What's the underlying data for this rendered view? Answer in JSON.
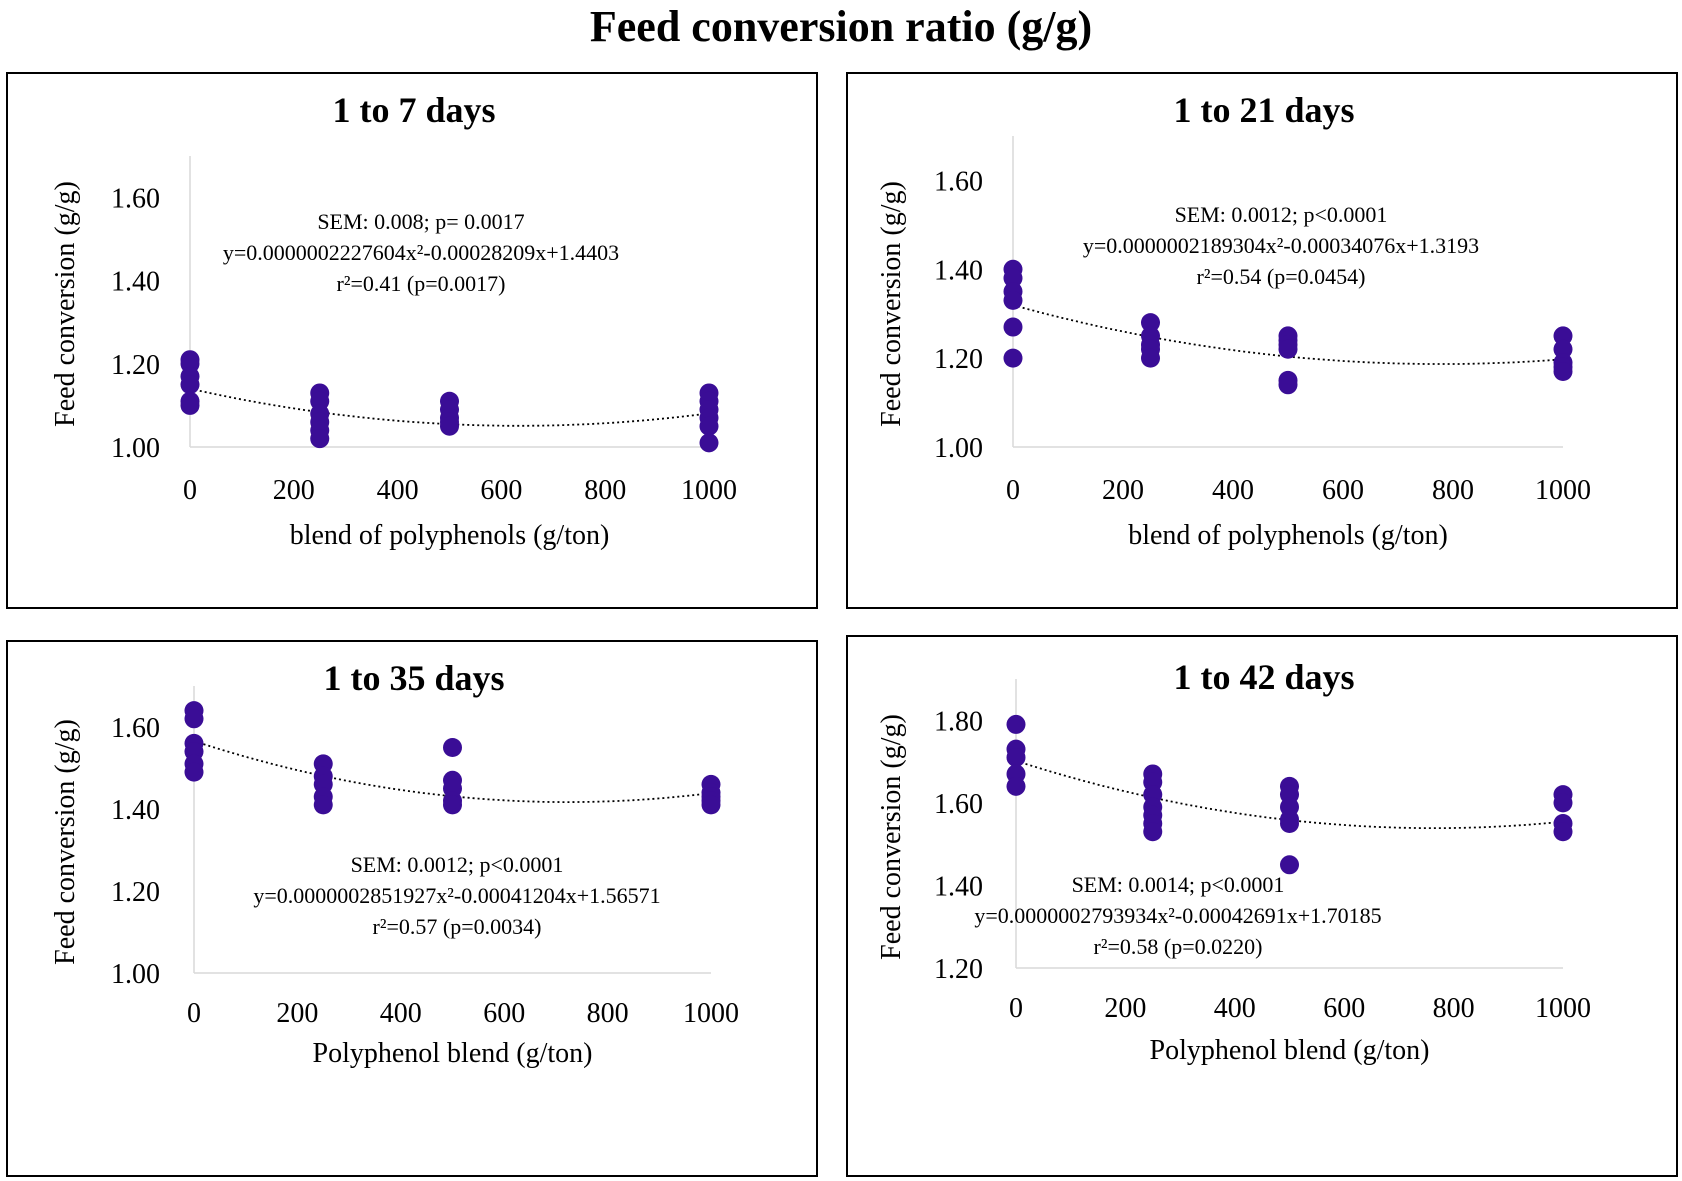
{
  "figure_title": "Feed conversion ratio (g/g)",
  "colors": {
    "marker": "#3a0d96",
    "trend": "#000000",
    "axis": "#d9d9d9",
    "text": "#000000"
  },
  "chart_data": [
    {
      "type": "scatter",
      "title": "1 to 7 days",
      "xlabel": "blend of polyphenols (g/ton)",
      "ylabel": "Feed conversion (g/g)",
      "xlim": [
        0,
        1000
      ],
      "ylim": [
        1.0,
        1.7
      ],
      "x_ticks": [
        0,
        200,
        400,
        600,
        800,
        1000
      ],
      "y_ticks": [
        1.0,
        1.2,
        1.4,
        1.6
      ],
      "x_tick_labels": [
        "0",
        "200",
        "400",
        "600",
        "800",
        "1000"
      ],
      "y_tick_labels": [
        "1.00",
        "1.20",
        "1.40",
        "1.60"
      ],
      "points": [
        {
          "x": 0,
          "y": 1.21
        },
        {
          "x": 0,
          "y": 1.2
        },
        {
          "x": 0,
          "y": 1.17
        },
        {
          "x": 0,
          "y": 1.15
        },
        {
          "x": 0,
          "y": 1.11
        },
        {
          "x": 0,
          "y": 1.1
        },
        {
          "x": 250,
          "y": 1.13
        },
        {
          "x": 250,
          "y": 1.11
        },
        {
          "x": 250,
          "y": 1.08
        },
        {
          "x": 250,
          "y": 1.06
        },
        {
          "x": 250,
          "y": 1.04
        },
        {
          "x": 250,
          "y": 1.02
        },
        {
          "x": 500,
          "y": 1.11
        },
        {
          "x": 500,
          "y": 1.09
        },
        {
          "x": 500,
          "y": 1.07
        },
        {
          "x": 500,
          "y": 1.06
        },
        {
          "x": 500,
          "y": 1.05
        },
        {
          "x": 1000,
          "y": 1.13
        },
        {
          "x": 1000,
          "y": 1.11
        },
        {
          "x": 1000,
          "y": 1.09
        },
        {
          "x": 1000,
          "y": 1.07
        },
        {
          "x": 1000,
          "y": 1.05
        },
        {
          "x": 1000,
          "y": 1.01
        }
      ],
      "trendline": {
        "type": "polynomial",
        "a": 2.227604e-07,
        "b": -0.00028209,
        "c": 1.4403,
        "y_offset": -0.3
      },
      "annotation": {
        "sem": "SEM: 0.008; p= 0.0017",
        "equation": "y=0.0000002227604x²-0.00028209x+1.4403",
        "r2": "r²=0.41 (p=0.0017)"
      }
    },
    {
      "type": "scatter",
      "title": "1 to 21 days",
      "xlabel": "blend of polyphenols (g/ton)",
      "ylabel": "Feed conversion (g/g)",
      "xlim": [
        0,
        1000
      ],
      "ylim": [
        1.0,
        1.7
      ],
      "x_ticks": [
        0,
        200,
        400,
        600,
        800,
        1000
      ],
      "y_ticks": [
        1.0,
        1.2,
        1.4,
        1.6
      ],
      "x_tick_labels": [
        "0",
        "200",
        "400",
        "600",
        "800",
        "1000"
      ],
      "y_tick_labels": [
        "1.00",
        "1.20",
        "1.40",
        "1.60"
      ],
      "points": [
        {
          "x": 0,
          "y": 1.4
        },
        {
          "x": 0,
          "y": 1.38
        },
        {
          "x": 0,
          "y": 1.35
        },
        {
          "x": 0,
          "y": 1.33
        },
        {
          "x": 0,
          "y": 1.27
        },
        {
          "x": 0,
          "y": 1.2
        },
        {
          "x": 250,
          "y": 1.28
        },
        {
          "x": 250,
          "y": 1.25
        },
        {
          "x": 250,
          "y": 1.23
        },
        {
          "x": 250,
          "y": 1.22
        },
        {
          "x": 250,
          "y": 1.2
        },
        {
          "x": 500,
          "y": 1.25
        },
        {
          "x": 500,
          "y": 1.24
        },
        {
          "x": 500,
          "y": 1.23
        },
        {
          "x": 500,
          "y": 1.22
        },
        {
          "x": 500,
          "y": 1.15
        },
        {
          "x": 500,
          "y": 1.14
        },
        {
          "x": 1000,
          "y": 1.25
        },
        {
          "x": 1000,
          "y": 1.22
        },
        {
          "x": 1000,
          "y": 1.19
        },
        {
          "x": 1000,
          "y": 1.18
        },
        {
          "x": 1000,
          "y": 1.17
        }
      ],
      "trendline": {
        "type": "polynomial",
        "a": 2.189304e-07,
        "b": -0.00034076,
        "c": 1.3193,
        "y_offset": 0.0
      },
      "annotation": {
        "sem": "SEM: 0.0012; p<0.0001",
        "equation": "y=0.0000002189304x²-0.00034076x+1.3193",
        "r2": "r²=0.54 (p=0.0454)"
      }
    },
    {
      "type": "scatter",
      "title": "1 to 35 days",
      "xlabel": "Polyphenol blend (g/ton)",
      "ylabel": "Feed conversion (g/g)",
      "xlim": [
        0,
        1000
      ],
      "ylim": [
        1.0,
        1.7
      ],
      "x_ticks": [
        0,
        200,
        400,
        600,
        800,
        1000
      ],
      "y_ticks": [
        1.0,
        1.2,
        1.4,
        1.6
      ],
      "x_tick_labels": [
        "0",
        "200",
        "400",
        "600",
        "800",
        "1000"
      ],
      "y_tick_labels": [
        "1.00",
        "1.20",
        "1.40",
        "1.60"
      ],
      "points": [
        {
          "x": 0,
          "y": 1.64
        },
        {
          "x": 0,
          "y": 1.62
        },
        {
          "x": 0,
          "y": 1.56
        },
        {
          "x": 0,
          "y": 1.54
        },
        {
          "x": 0,
          "y": 1.51
        },
        {
          "x": 0,
          "y": 1.49
        },
        {
          "x": 250,
          "y": 1.51
        },
        {
          "x": 250,
          "y": 1.48
        },
        {
          "x": 250,
          "y": 1.46
        },
        {
          "x": 250,
          "y": 1.43
        },
        {
          "x": 250,
          "y": 1.41
        },
        {
          "x": 500,
          "y": 1.55
        },
        {
          "x": 500,
          "y": 1.47
        },
        {
          "x": 500,
          "y": 1.45
        },
        {
          "x": 500,
          "y": 1.42
        },
        {
          "x": 500,
          "y": 1.41
        },
        {
          "x": 1000,
          "y": 1.46
        },
        {
          "x": 1000,
          "y": 1.44
        },
        {
          "x": 1000,
          "y": 1.43
        },
        {
          "x": 1000,
          "y": 1.42
        },
        {
          "x": 1000,
          "y": 1.41
        }
      ],
      "trendline": {
        "type": "polynomial",
        "a": 2.851927e-07,
        "b": -0.00041204,
        "c": 1.56571,
        "y_offset": 0.0
      },
      "annotation": {
        "sem": "SEM: 0.0012; p<0.0001",
        "equation": "y=0.0000002851927x²-0.00041204x+1.56571",
        "r2": "r²=0.57 (p=0.0034)"
      }
    },
    {
      "type": "scatter",
      "title": "1 to 42 days",
      "xlabel": "Polyphenol blend (g/ton)",
      "ylabel": "Feed conversion (g/g)",
      "xlim": [
        0,
        1000
      ],
      "ylim": [
        1.2,
        1.9
      ],
      "x_ticks": [
        0,
        200,
        400,
        600,
        800,
        1000
      ],
      "y_ticks": [
        1.2,
        1.4,
        1.6,
        1.8
      ],
      "x_tick_labels": [
        "0",
        "200",
        "400",
        "600",
        "800",
        "1000"
      ],
      "y_tick_labels": [
        "1.20",
        "1.40",
        "1.60",
        "1.80"
      ],
      "points": [
        {
          "x": 0,
          "y": 1.79
        },
        {
          "x": 0,
          "y": 1.73
        },
        {
          "x": 0,
          "y": 1.71
        },
        {
          "x": 0,
          "y": 1.67
        },
        {
          "x": 0,
          "y": 1.64
        },
        {
          "x": 250,
          "y": 1.67
        },
        {
          "x": 250,
          "y": 1.65
        },
        {
          "x": 250,
          "y": 1.62
        },
        {
          "x": 250,
          "y": 1.59
        },
        {
          "x": 250,
          "y": 1.57
        },
        {
          "x": 250,
          "y": 1.55
        },
        {
          "x": 250,
          "y": 1.53
        },
        {
          "x": 500,
          "y": 1.64
        },
        {
          "x": 500,
          "y": 1.62
        },
        {
          "x": 500,
          "y": 1.59
        },
        {
          "x": 500,
          "y": 1.56
        },
        {
          "x": 500,
          "y": 1.55
        },
        {
          "x": 500,
          "y": 1.45
        },
        {
          "x": 1000,
          "y": 1.62
        },
        {
          "x": 1000,
          "y": 1.6
        },
        {
          "x": 1000,
          "y": 1.55
        },
        {
          "x": 1000,
          "y": 1.53
        }
      ],
      "trendline": {
        "type": "polynomial",
        "a": 2.793934e-07,
        "b": -0.00042691,
        "c": 1.70185,
        "y_offset": 0.0
      },
      "annotation": {
        "sem": "SEM: 0.0014; p<0.0001",
        "equation": "y=0.0000002793934x²-0.00042691x+1.70185",
        "r2": "r²=0.58 (p=0.0220)"
      }
    }
  ]
}
